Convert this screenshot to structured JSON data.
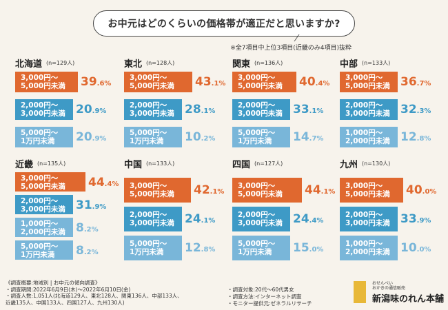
{
  "header": {
    "title": "お中元はどのくらいの価格帯が適正だと思いますか?",
    "subtitle": "※全7項目中上位3項目(近畿のみ4項目)抜粋"
  },
  "colors": {
    "orange": "#e0682f",
    "blue": "#3e9ac6",
    "lightblue": "#79b6d9"
  },
  "chart_data": {
    "type": "bar",
    "title": "お中元はどのくらいの価格帯が適正だと思いますか?",
    "unit": "%",
    "regions": [
      {
        "name": "北海道",
        "n": "(n=129人)",
        "items": [
          {
            "label": "3,000円～\n5,000円未満",
            "value": 39.6,
            "int": "39",
            "dec": ".6%",
            "color": "orange"
          },
          {
            "label": "2,000円～\n3,000円未満",
            "value": 20.9,
            "int": "20",
            "dec": ".9%",
            "color": "blue"
          },
          {
            "label": "5,000円～\n1万円未満",
            "value": 20.9,
            "int": "20",
            "dec": ".9%",
            "color": "lightblue"
          }
        ]
      },
      {
        "name": "東北",
        "n": "(n=128人)",
        "items": [
          {
            "label": "3,000円～\n5,000円未満",
            "value": 43.1,
            "int": "43",
            "dec": ".1%",
            "color": "orange"
          },
          {
            "label": "2,000円～\n3,000円未満",
            "value": 28.1,
            "int": "28",
            "dec": ".1%",
            "color": "blue"
          },
          {
            "label": "5,000円～\n1万円未満",
            "value": 10.2,
            "int": "10",
            "dec": ".2%",
            "color": "lightblue"
          }
        ]
      },
      {
        "name": "関東",
        "n": "(n=136人)",
        "items": [
          {
            "label": "3,000円～\n5,000円未満",
            "value": 40.4,
            "int": "40",
            "dec": ".4%",
            "color": "orange"
          },
          {
            "label": "2,000円～\n3,000円未満",
            "value": 33.1,
            "int": "33",
            "dec": ".1%",
            "color": "blue"
          },
          {
            "label": "5,000円～\n1万円未満",
            "value": 14.7,
            "int": "14",
            "dec": ".7%",
            "color": "lightblue"
          }
        ]
      },
      {
        "name": "中部",
        "n": "(n=133人)",
        "items": [
          {
            "label": "3,000円～\n5,000円未満",
            "value": 36.7,
            "int": "36",
            "dec": ".7%",
            "color": "orange"
          },
          {
            "label": "2,000円～\n3,000円未満",
            "value": 32.3,
            "int": "32",
            "dec": ".3%",
            "color": "blue"
          },
          {
            "label": "1,000円～\n2,000円未満",
            "value": 12.8,
            "int": "12",
            "dec": ".8%",
            "color": "lightblue"
          }
        ]
      },
      {
        "name": "近畿",
        "n": "(n=135人)",
        "items": [
          {
            "label": "3,000円～\n5,000円未満",
            "value": 44.4,
            "int": "44",
            "dec": ".4%",
            "color": "orange"
          },
          {
            "label": "2,000円～\n3,000円未満",
            "value": 31.9,
            "int": "31",
            "dec": ".9%",
            "color": "blue"
          },
          {
            "label": "1,000円～\n2,000円未満",
            "value": 8.2,
            "int": "8",
            "dec": ".2%",
            "color": "lightblue"
          },
          {
            "label": "5,000円～\n1万円未満",
            "value": 8.2,
            "int": "8",
            "dec": ".2%",
            "color": "lightblue"
          }
        ]
      },
      {
        "name": "中国",
        "n": "(n=133人)",
        "items": [
          {
            "label": "3,000円～\n5,000円未満",
            "value": 42.1,
            "int": "42",
            "dec": ".1%",
            "color": "orange"
          },
          {
            "label": "2,000円～\n3,000円未満",
            "value": 24.1,
            "int": "24",
            "dec": ".1%",
            "color": "blue"
          },
          {
            "label": "5,000円～\n1万円未満",
            "value": 12.8,
            "int": "12",
            "dec": ".8%",
            "color": "lightblue"
          }
        ]
      },
      {
        "name": "四国",
        "n": "(n=127人)",
        "items": [
          {
            "label": "3,000円～\n5,000円未満",
            "value": 44.1,
            "int": "44",
            "dec": ".1%",
            "color": "orange"
          },
          {
            "label": "2,000円～\n3,000円未満",
            "value": 24.4,
            "int": "24",
            "dec": ".4%",
            "color": "blue"
          },
          {
            "label": "5,000円～\n1万円未満",
            "value": 15.0,
            "int": "15",
            "dec": ".0%",
            "color": "lightblue"
          }
        ]
      },
      {
        "name": "九州",
        "n": "(n=130人)",
        "items": [
          {
            "label": "3,000円～\n5,000円未満",
            "value": 40.0,
            "int": "40",
            "dec": ".0%",
            "color": "orange"
          },
          {
            "label": "2,000円～\n3,000円未満",
            "value": 33.9,
            "int": "33",
            "dec": ".9%",
            "color": "blue"
          },
          {
            "label": "1,000円～\n2,000円未満",
            "value": 10.0,
            "int": "10",
            "dec": ".0%",
            "color": "lightblue"
          }
        ]
      }
    ]
  },
  "footer": {
    "summary_title": "《調査概要:地域別 | お中元の傾向調査》",
    "period": "・調査期間:2022年6月9日(木)～2022年6月10日(金)",
    "respondents_1": "・調査人数:1,051人(北海道129人、東北128人、関東136人、中部133人、",
    "respondents_2": "近畿135人、中国133人、四国127人、九州130人)",
    "target": "・調査対象:20代～60代男女",
    "method": "・調査方法:インターネット調査",
    "provider": "・モニター提供元:ゼネラルリサーチ"
  },
  "logo": {
    "small_1": "おせんべい",
    "small_2": "おかきの通信販売",
    "name": "新潟味のれん本舗"
  }
}
